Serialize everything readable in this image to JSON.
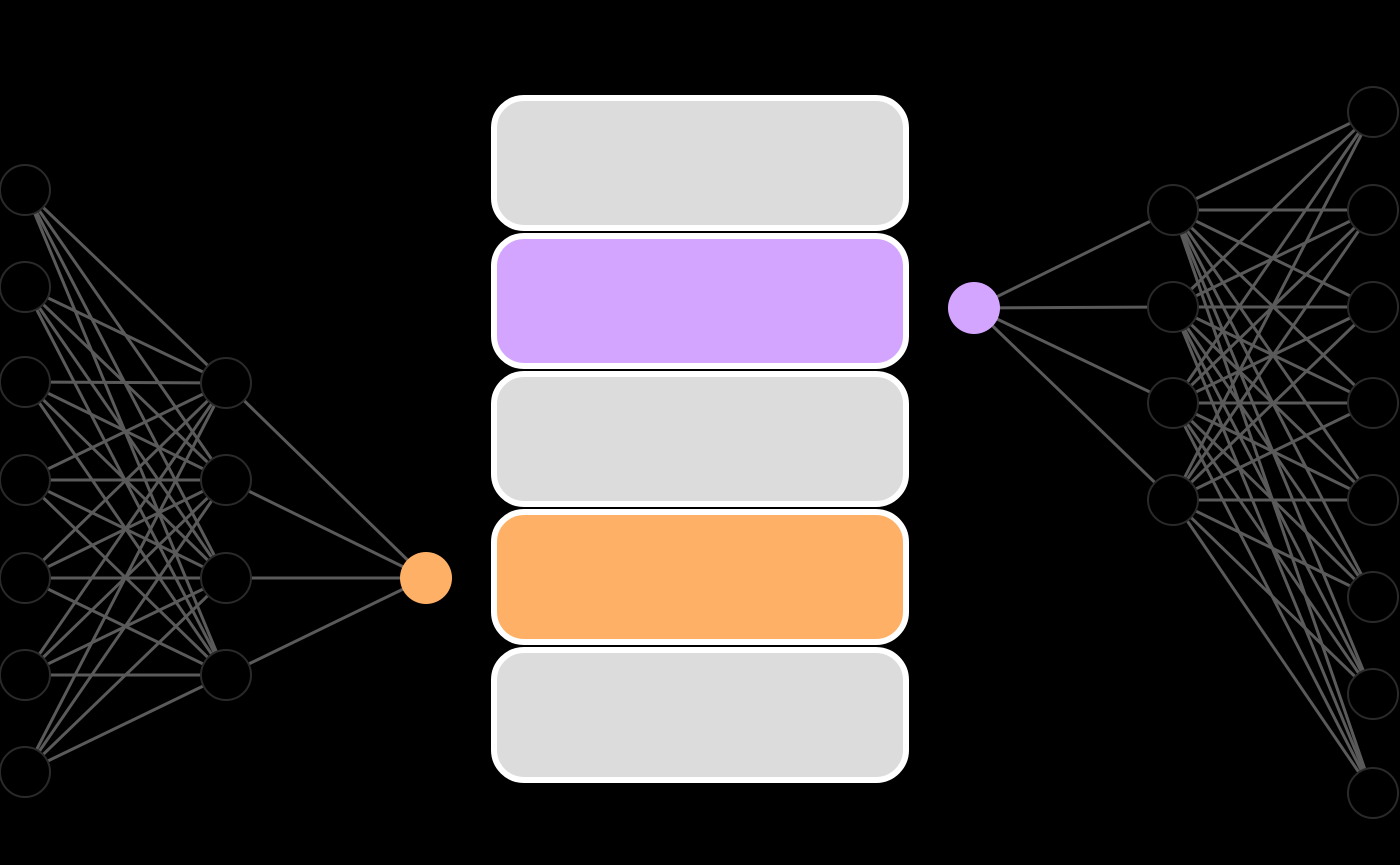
{
  "colors": {
    "background": "#000000",
    "node_fill": "#000000",
    "node_outline": "#2a2a2a",
    "edge": "#5a5a5a",
    "block_border": "#ffffff",
    "block_gray": "#dcdcdc",
    "purple": "#d4a5ff",
    "orange": "#ffb067"
  },
  "diagram": {
    "left_network": {
      "input_node_count": 7,
      "hidden_node_count": 4,
      "output_node_color": "orange"
    },
    "stack": {
      "blocks": [
        "gray",
        "purple",
        "gray",
        "orange",
        "gray"
      ]
    },
    "right_network": {
      "input_node_color": "purple",
      "hidden_node_count": 4,
      "output_node_count": 8
    }
  }
}
